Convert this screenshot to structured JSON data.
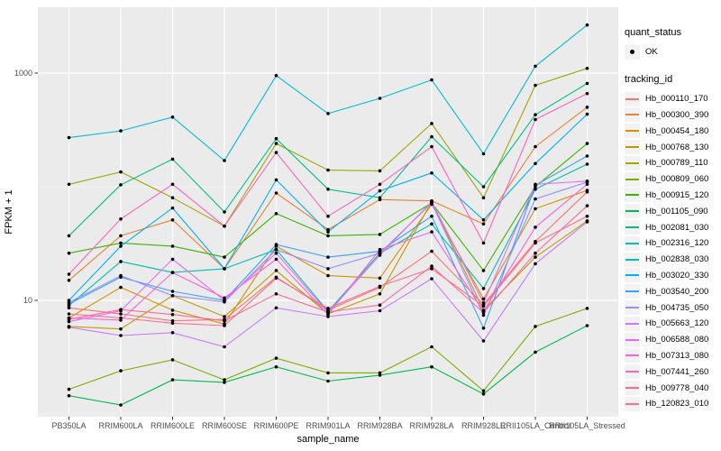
{
  "figure": {
    "kind": "ggplot-line-chart",
    "background": "#FFFFFF"
  },
  "legend": {
    "quant_title": "quant_status",
    "quant_item_label": "OK",
    "tracking_title": "tracking_id"
  },
  "chart_data": {
    "type": "line",
    "title": "",
    "xlabel": "sample_name",
    "ylabel": "FPKM + 1",
    "y_scale": "log10",
    "grid": "on",
    "legend_position": "right",
    "point_shape": "filled-circle",
    "point_color": "#000000",
    "colors": {
      "panel": "#EBEBEB",
      "gridline": "#FFFFFF",
      "tick_text": "#4D4D4D",
      "tick_mark": "#333333"
    },
    "categories": [
      "PB350LA",
      "RRIM600LA",
      "RRIM600LE",
      "RRIM600SE",
      "RRIM600PE",
      "RRIM901LA",
      "RRIM928BA",
      "RRIM928LA",
      "RRIM928LE",
      "RRII105LA_Control",
      "RRII105LA_Stressed"
    ],
    "y_axis": {
      "ticks": [
        {
          "label": "1000",
          "value": 1000
        },
        {
          "label": "10",
          "value": 10
        }
      ],
      "minor_grid_values": [
        100,
        1
      ],
      "range_approx": [
        0.8,
        3800
      ]
    },
    "quant_status_values": [
      "OK"
    ],
    "series": [
      {
        "name": "Hb_000110_170",
        "color": "#F8766D",
        "values": [
          8.6,
          7.6,
          6.6,
          6.8,
          16,
          8.2,
          13,
          27,
          9.2,
          33,
          90
        ]
      },
      {
        "name": "Hb_000300_390",
        "color": "#EA8331",
        "values": [
          15,
          37,
          51,
          19,
          88,
          42,
          77,
          75,
          47,
          225,
          500
        ]
      },
      {
        "name": "Hb_000454_180",
        "color": "#D89000",
        "values": [
          7.0,
          13,
          8.2,
          6.2,
          30,
          16.5,
          15.7,
          70,
          10.3,
          64,
          93
        ]
      },
      {
        "name": "Hb_000768_130",
        "color": "#C09B00",
        "values": [
          5.9,
          5.6,
          11,
          7.2,
          18.3,
          7.6,
          11.4,
          74,
          8.2,
          24,
          50
        ]
      },
      {
        "name": "Hb_000789_110",
        "color": "#A3A500",
        "values": [
          105,
          135,
          80,
          45,
          240,
          140,
          138,
          360,
          80,
          780,
          1100
        ]
      },
      {
        "name": "Hb_000809_060",
        "color": "#7CAE00",
        "values": [
          1.65,
          2.4,
          3.0,
          2.0,
          3.1,
          2.3,
          2.3,
          3.9,
          1.6,
          5.9,
          8.5
        ]
      },
      {
        "name": "Hb_000915_120",
        "color": "#39B600",
        "values": [
          26,
          32,
          30,
          24,
          58,
          37,
          38,
          72,
          18.3,
          100,
          240
        ]
      },
      {
        "name": "Hb_001105_090",
        "color": "#00BB4E",
        "values": [
          1.45,
          1.2,
          2.0,
          1.9,
          2.6,
          1.95,
          2.2,
          2.6,
          1.5,
          3.5,
          6.0
        ]
      },
      {
        "name": "Hb_002081_030",
        "color": "#00C087",
        "values": [
          37,
          104,
          175,
          60,
          265,
          95,
          80,
          275,
          100,
          430,
          810
        ]
      },
      {
        "name": "Hb_002316_120",
        "color": "#00C0AF",
        "values": [
          9.0,
          22,
          17.6,
          19,
          28,
          8.0,
          26,
          47,
          12.7,
          95,
          158
        ]
      },
      {
        "name": "Hb_002838_030",
        "color": "#00BCD8",
        "values": [
          270,
          310,
          410,
          170,
          950,
          440,
          600,
          870,
          195,
          1150,
          2650
        ]
      },
      {
        "name": "Hb_003020_330",
        "color": "#00B0F6",
        "values": [
          10,
          30,
          65,
          19,
          115,
          40,
          92,
          132,
          51,
          160,
          435
        ]
      },
      {
        "name": "Hb_003540_200",
        "color": "#35A2FF",
        "values": [
          9.3,
          16,
          12,
          10,
          31,
          24,
          27,
          55,
          5.7,
          103,
          186
        ]
      },
      {
        "name": "Hb_004735_050",
        "color": "#9590FF",
        "values": [
          9.6,
          16.5,
          11,
          9.7,
          28,
          19,
          26,
          72,
          7.4,
          78,
          110
        ]
      },
      {
        "name": "Hb_005663_120",
        "color": "#C77CFF",
        "values": [
          5.8,
          4.9,
          5.2,
          3.9,
          8.6,
          7.2,
          8.1,
          15.5,
          4.4,
          21,
          49
        ]
      },
      {
        "name": "Hb_006588_080",
        "color": "#E36EF6",
        "values": [
          6.5,
          8.1,
          23,
          10,
          26,
          7.8,
          25,
          74,
          9.5,
          105,
          112
        ]
      },
      {
        "name": "Hb_007313_080",
        "color": "#F763E0",
        "values": [
          7.0,
          6.7,
          17.6,
          10.5,
          23,
          7.5,
          28,
          40,
          8.0,
          44,
          105
        ]
      },
      {
        "name": "Hb_007441_260",
        "color": "#FF61C3",
        "values": [
          17,
          52,
          105,
          45,
          200,
          55,
          105,
          225,
          32,
          390,
          660
        ]
      },
      {
        "name": "Hb_009778_040",
        "color": "#FF689E",
        "values": [
          6.8,
          8.3,
          7.5,
          6.6,
          11.4,
          7.9,
          9.1,
          20,
          7.8,
          26,
          68
        ]
      },
      {
        "name": "Hb_120823_010",
        "color": "#FF6C91",
        "values": [
          7.6,
          7.0,
          6.3,
          6.0,
          15.7,
          8.5,
          13.3,
          19,
          8.9,
          32,
          55
        ]
      }
    ]
  }
}
